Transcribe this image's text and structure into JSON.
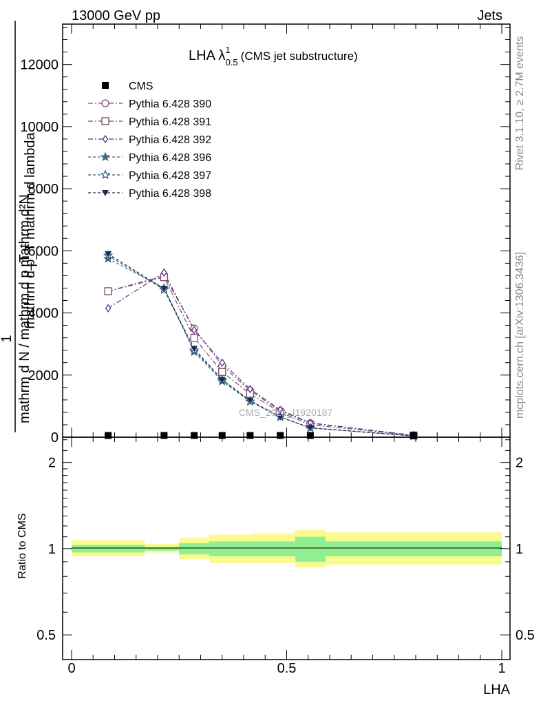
{
  "header": {
    "left": "13000 GeV pp",
    "right": "Jets"
  },
  "side_labels": {
    "rivet": "Rivet 3.1.10, ≥ 2.7M events",
    "mcplots": "mcplots.cern.ch [arXiv:1306.3436]"
  },
  "watermark": "CMS_2021_I1920187",
  "chart_data": [
    {
      "type": "line",
      "title": "LHA λ",
      "title_sup": "1",
      "title_sub": "0.5",
      "title_suffix": "(CMS jet substructure)",
      "ylabel_numerator_top": "mathrm d²N",
      "ylabel_numerator_bottom": "mathrm d p_T mathrm d lambda",
      "ylabel_frac": "1",
      "ylabel_denominator": "mathrm d N / mathrm d p_T",
      "xlim": [
        -0.02,
        1.01
      ],
      "ylim": [
        0,
        13300
      ],
      "yticks": [
        0,
        2000,
        4000,
        6000,
        8000,
        10000,
        12000
      ],
      "ytick_labels": [
        "0",
        "2000",
        "4000",
        "6000",
        "8000",
        "10000",
        "12000"
      ],
      "legend_position": "top-left",
      "x": [
        0.085,
        0.215,
        0.285,
        0.35,
        0.415,
        0.485,
        0.555,
        0.795
      ],
      "series": [
        {
          "name": "CMS",
          "color": "#000000",
          "marker": "square-filled",
          "values": [
            10,
            10,
            10,
            10,
            10,
            10,
            10,
            10
          ]
        },
        {
          "name": "Pythia 6.428 390",
          "color": "#7a4a7f",
          "marker": "circle-open",
          "dash": "7,3,2,3",
          "values": [
            4700,
            5200,
            3500,
            2300,
            1500,
            850,
            450,
            60
          ]
        },
        {
          "name": "Pythia 6.428 391",
          "color": "#7a4a60",
          "marker": "square-open",
          "dash": "7,3,2,3",
          "values": [
            4700,
            5150,
            3200,
            2100,
            1400,
            800,
            400,
            55
          ]
        },
        {
          "name": "Pythia 6.428 392",
          "color": "#5a2f8a",
          "marker": "diamond-open",
          "dash": "7,3,2,3",
          "values": [
            4150,
            5300,
            3450,
            2400,
            1550,
            880,
            460,
            60
          ]
        },
        {
          "name": "Pythia 6.428 396",
          "color": "#3f6e86",
          "marker": "star-filled",
          "dash": "4,3",
          "values": [
            5750,
            4800,
            2750,
            1800,
            1150,
            650,
            300,
            40
          ]
        },
        {
          "name": "Pythia 6.428 397",
          "color": "#2d5876",
          "marker": "star-open",
          "dash": "4,3",
          "values": [
            5850,
            4750,
            2800,
            1850,
            1150,
            650,
            300,
            40
          ]
        },
        {
          "name": "Pythia 6.428 398",
          "color": "#1d2b52",
          "marker": "triangle-down-filled",
          "dash": "4,3",
          "values": [
            5900,
            4780,
            2850,
            1850,
            1180,
            650,
            300,
            40
          ]
        }
      ]
    },
    {
      "type": "area",
      "xlabel": "LHA",
      "ylabel": "Ratio to CMS",
      "xlim": [
        -0.02,
        1.01
      ],
      "xticks": [
        0,
        0.5,
        1
      ],
      "xtick_labels": [
        "0",
        "0.5",
        "1"
      ],
      "yscale": "log",
      "ylim": [
        0.41,
        2.45
      ],
      "yticks": [
        0.5,
        1,
        2
      ],
      "ytick_labels": [
        "0.5",
        "1",
        "2"
      ],
      "bins": [
        0,
        0.17,
        0.25,
        0.32,
        0.42,
        0.52,
        0.59,
        1.0
      ],
      "band_inner": [
        [
          0.97,
          1.03
        ],
        [
          0.985,
          1.015
        ],
        [
          0.955,
          1.045
        ],
        [
          0.94,
          1.06
        ],
        [
          0.94,
          1.06
        ],
        [
          0.9,
          1.1
        ],
        [
          0.94,
          1.06
        ]
      ],
      "band_outer": [
        [
          0.94,
          1.07
        ],
        [
          0.97,
          1.04
        ],
        [
          0.92,
          1.09
        ],
        [
          0.89,
          1.12
        ],
        [
          0.89,
          1.13
        ],
        [
          0.86,
          1.16
        ],
        [
          0.88,
          1.14
        ]
      ],
      "inner_color": "#90f090",
      "outer_color": "#fafa90"
    }
  ]
}
